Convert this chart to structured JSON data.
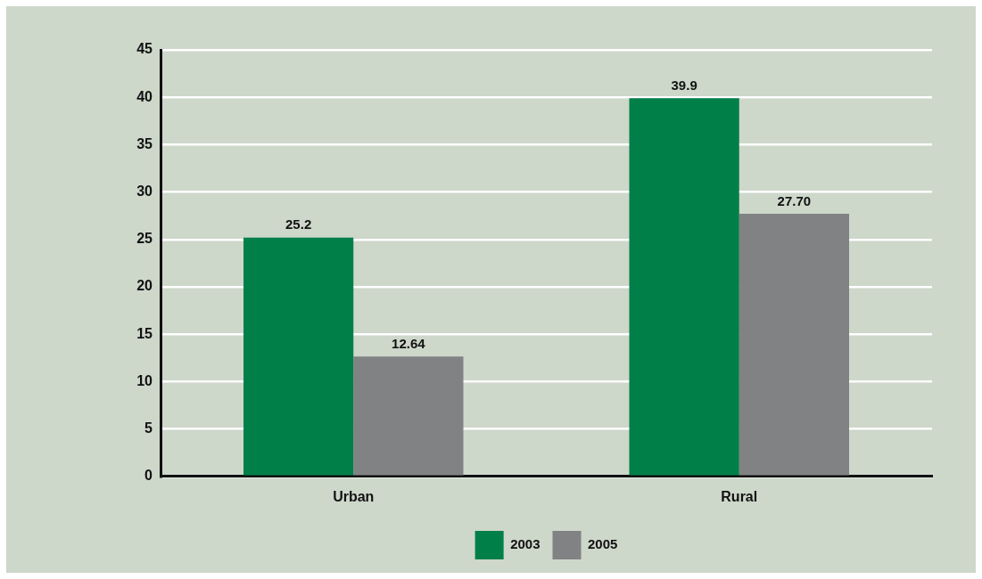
{
  "chart_data": {
    "type": "bar",
    "categories": [
      "Urban",
      "Rural"
    ],
    "series": [
      {
        "name": "2003",
        "color": "#007f48",
        "values": [
          25.2,
          39.9
        ],
        "value_labels": [
          "25.2",
          "39.9"
        ]
      },
      {
        "name": "2005",
        "color": "#818284",
        "values": [
          12.64,
          27.7
        ],
        "value_labels": [
          "12.64",
          "27.70"
        ]
      }
    ],
    "ylim": [
      0,
      45
    ],
    "yticks": [
      0,
      5,
      10,
      15,
      20,
      25,
      30,
      35,
      40,
      45
    ],
    "grid": "y",
    "legend": "bottom"
  }
}
